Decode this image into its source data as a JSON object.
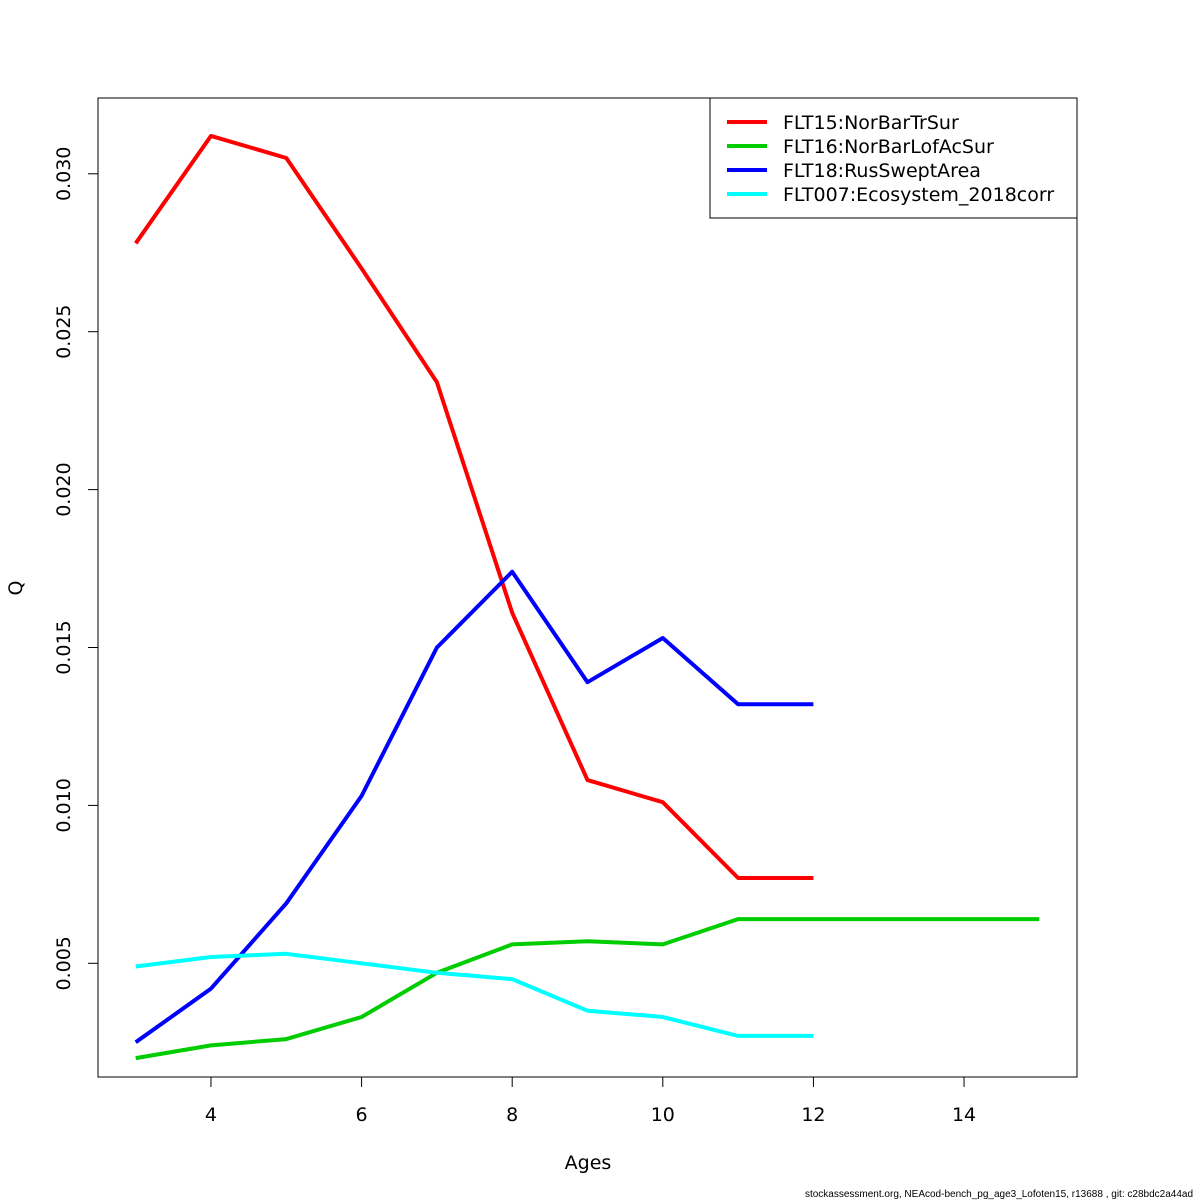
{
  "chart_data": {
    "type": "line",
    "title": "",
    "xlabel": "Ages",
    "ylabel": "Q",
    "xlim": [
      2.5,
      15.5
    ],
    "ylim": [
      0.0014,
      0.0324
    ],
    "xticks": [
      4,
      6,
      8,
      10,
      12,
      14
    ],
    "xtick_labels": [
      "4",
      "6",
      "8",
      "10",
      "12",
      "14"
    ],
    "yticks": [
      0.005,
      0.01,
      0.015,
      0.02,
      0.025,
      0.03
    ],
    "ytick_labels": [
      "0.005",
      "0.010",
      "0.015",
      "0.020",
      "0.025",
      "0.030"
    ],
    "grid": false,
    "legend_position": "top-right",
    "series": [
      {
        "name": "FLT15:NorBarTrSur",
        "color": "#ff0000",
        "x": [
          3,
          4,
          5,
          6,
          7,
          8,
          9,
          10,
          11,
          12
        ],
        "y": [
          0.0278,
          0.0312,
          0.0305,
          0.027,
          0.0234,
          0.0161,
          0.0108,
          0.0101,
          0.0077,
          0.0077
        ]
      },
      {
        "name": "FLT16:NorBarLofAcSur",
        "color": "#00cd00",
        "x": [
          3,
          4,
          5,
          6,
          7,
          8,
          9,
          10,
          11,
          12,
          13,
          14,
          15
        ],
        "y": [
          0.002,
          0.0024,
          0.0026,
          0.0033,
          0.0047,
          0.0056,
          0.0057,
          0.0056,
          0.0064,
          0.0064,
          0.0064,
          0.0064,
          0.0064
        ]
      },
      {
        "name": "FLT18:RusSweptArea",
        "color": "#0000ff",
        "x": [
          3,
          4,
          5,
          6,
          7,
          8,
          9,
          10,
          11,
          12
        ],
        "y": [
          0.0025,
          0.0042,
          0.0069,
          0.0103,
          0.015,
          0.0174,
          0.0139,
          0.0153,
          0.0132,
          0.0132
        ]
      },
      {
        "name": "FLT007:Ecosystem_2018corr",
        "color": "#00ffff",
        "x": [
          3,
          4,
          5,
          6,
          7,
          8,
          9,
          10,
          11,
          12
        ],
        "y": [
          0.0049,
          0.0052,
          0.0053,
          0.005,
          0.0047,
          0.0045,
          0.0035,
          0.0033,
          0.0027,
          0.0027
        ]
      }
    ]
  },
  "footer": "stockassessment.org, NEAcod-bench_pg_age3_Lofoten15, r13688 , git: c28bdc2a44ad"
}
